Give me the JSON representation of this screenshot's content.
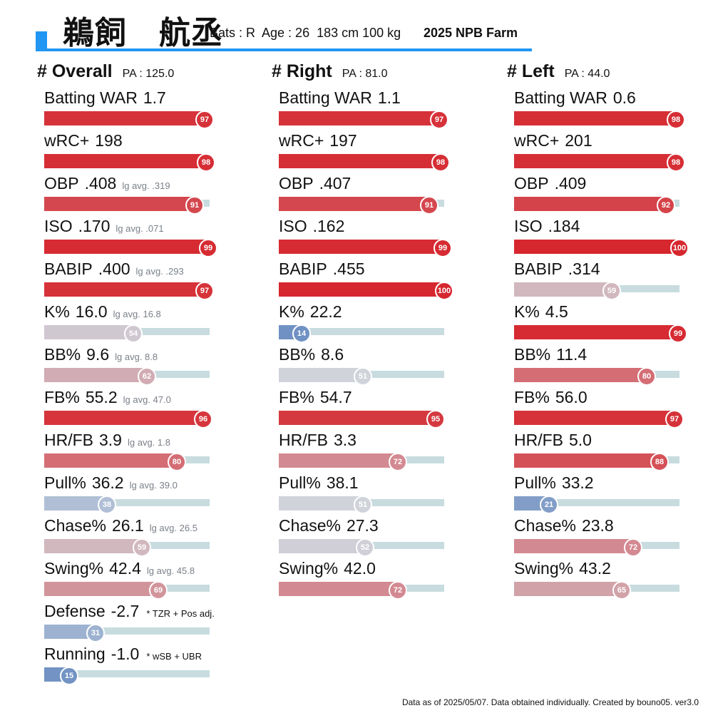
{
  "header": {
    "name": "鵜飼　航丞",
    "meta": "Bats : R  Age : 26  183 cm 100 kg",
    "league": "2025 NPB Farm"
  },
  "footer": "Data as of 2025/05/07. Data obtained individually. Created by bouno05.  ver3.0",
  "chart_data": {
    "type": "bar",
    "panels": [
      {
        "name": "# Overall",
        "pa": "PA : 125.0",
        "metrics": [
          {
            "label": "Batting WAR",
            "value": "1.7",
            "percentile": 97,
            "avg": "",
            "note": ""
          },
          {
            "label": "wRC+",
            "value": "198",
            "percentile": 98,
            "avg": "",
            "note": ""
          },
          {
            "label": "OBP",
            "value": ".408",
            "percentile": 91,
            "avg": "lg avg. .319",
            "note": ""
          },
          {
            "label": "ISO",
            "value": ".170",
            "percentile": 99,
            "avg": "lg avg. .071",
            "note": ""
          },
          {
            "label": "BABIP",
            "value": ".400",
            "percentile": 97,
            "avg": "lg avg. .293",
            "note": ""
          },
          {
            "label": "K%",
            "value": "16.0",
            "percentile": 54,
            "avg": "lg avg. 16.8",
            "note": ""
          },
          {
            "label": "BB%",
            "value": "9.6",
            "percentile": 62,
            "avg": "lg avg. 8.8",
            "note": ""
          },
          {
            "label": "FB%",
            "value": "55.2",
            "percentile": 96,
            "avg": "lg avg. 47.0",
            "note": ""
          },
          {
            "label": "HR/FB",
            "value": "3.9",
            "percentile": 80,
            "avg": "lg avg. 1.8",
            "note": ""
          },
          {
            "label": "Pull%",
            "value": "36.2",
            "percentile": 38,
            "avg": "lg avg. 39.0",
            "note": ""
          },
          {
            "label": "Chase%",
            "value": "26.1",
            "percentile": 59,
            "avg": "lg avg. 26.5",
            "note": ""
          },
          {
            "label": "Swing%",
            "value": "42.4",
            "percentile": 69,
            "avg": "lg avg. 45.8",
            "note": ""
          },
          {
            "label": "Defense",
            "value": "-2.7",
            "percentile": 31,
            "avg": "",
            "note": "* TZR + Pos adj."
          },
          {
            "label": "Running",
            "value": "-1.0",
            "percentile": 15,
            "avg": "",
            "note": "* wSB + UBR"
          }
        ]
      },
      {
        "name": "# Right",
        "pa": "PA : 81.0",
        "metrics": [
          {
            "label": "Batting WAR",
            "value": "1.1",
            "percentile": 97,
            "avg": "",
            "note": ""
          },
          {
            "label": "wRC+",
            "value": "197",
            "percentile": 98,
            "avg": "",
            "note": ""
          },
          {
            "label": "OBP",
            "value": ".407",
            "percentile": 91,
            "avg": "",
            "note": ""
          },
          {
            "label": "ISO",
            "value": ".162",
            "percentile": 99,
            "avg": "",
            "note": ""
          },
          {
            "label": "BABIP",
            "value": ".455",
            "percentile": 100,
            "avg": "",
            "note": ""
          },
          {
            "label": "K%",
            "value": "22.2",
            "percentile": 14,
            "avg": "",
            "note": ""
          },
          {
            "label": "BB%",
            "value": "8.6",
            "percentile": 51,
            "avg": "",
            "note": ""
          },
          {
            "label": "FB%",
            "value": "54.7",
            "percentile": 95,
            "avg": "",
            "note": ""
          },
          {
            "label": "HR/FB",
            "value": "3.3",
            "percentile": 72,
            "avg": "",
            "note": ""
          },
          {
            "label": "Pull%",
            "value": "38.1",
            "percentile": 51,
            "avg": "",
            "note": ""
          },
          {
            "label": "Chase%",
            "value": "27.3",
            "percentile": 52,
            "avg": "",
            "note": ""
          },
          {
            "label": "Swing%",
            "value": "42.0",
            "percentile": 72,
            "avg": "",
            "note": ""
          }
        ]
      },
      {
        "name": "# Left",
        "pa": "PA : 44.0",
        "metrics": [
          {
            "label": "Batting WAR",
            "value": "0.6",
            "percentile": 98,
            "avg": "",
            "note": ""
          },
          {
            "label": "wRC+",
            "value": "201",
            "percentile": 98,
            "avg": "",
            "note": ""
          },
          {
            "label": "OBP",
            "value": ".409",
            "percentile": 92,
            "avg": "",
            "note": ""
          },
          {
            "label": "ISO",
            "value": ".184",
            "percentile": 100,
            "avg": "",
            "note": ""
          },
          {
            "label": "BABIP",
            "value": ".314",
            "percentile": 59,
            "avg": "",
            "note": ""
          },
          {
            "label": "K%",
            "value": "4.5",
            "percentile": 99,
            "avg": "",
            "note": ""
          },
          {
            "label": "BB%",
            "value": "11.4",
            "percentile": 80,
            "avg": "",
            "note": ""
          },
          {
            "label": "FB%",
            "value": "56.0",
            "percentile": 97,
            "avg": "",
            "note": ""
          },
          {
            "label": "HR/FB",
            "value": "5.0",
            "percentile": 88,
            "avg": "",
            "note": ""
          },
          {
            "label": "Pull%",
            "value": "33.2",
            "percentile": 21,
            "avg": "",
            "note": ""
          },
          {
            "label": "Chase%",
            "value": "23.8",
            "percentile": 72,
            "avg": "",
            "note": ""
          },
          {
            "label": "Swing%",
            "value": "43.2",
            "percentile": 65,
            "avg": "",
            "note": ""
          }
        ]
      }
    ]
  }
}
